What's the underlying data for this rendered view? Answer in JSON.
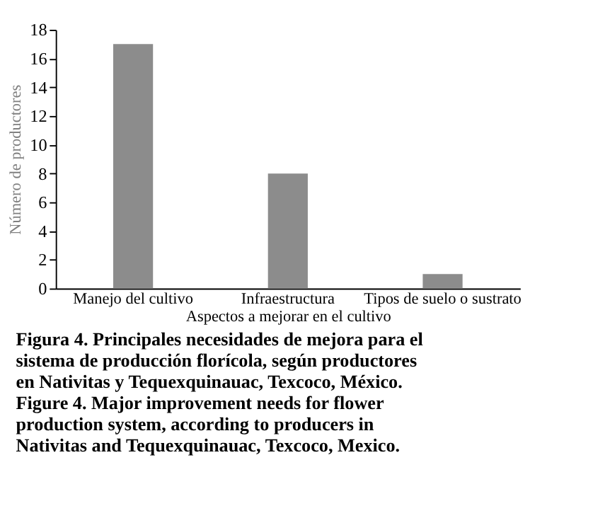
{
  "chart_data": {
    "type": "bar",
    "xlabel": "Aspectos a mejorar en el cultivo",
    "ylabel": "Número de productores",
    "categories": [
      "Manejo del cultivo",
      "Infraestructura",
      "Tipos de suelo o sustrato"
    ],
    "values": [
      17,
      8,
      1
    ],
    "color": "#8c8c8c",
    "ylim": [
      0,
      18
    ],
    "yticks": [
      0,
      2,
      4,
      6,
      8,
      10,
      12,
      14,
      16,
      18
    ],
    "grid": false,
    "annotations": [
      "Figura 4. Principales necesidades de mejora para el sistema de producción florícola, según productores en Nativitas y Tequexquinauac, Texcoco, México.",
      "Figure 4. Major improvement needs for flower production system, according to producers in Nativitas and Tequexquinauac, Texcoco, Mexico."
    ]
  }
}
